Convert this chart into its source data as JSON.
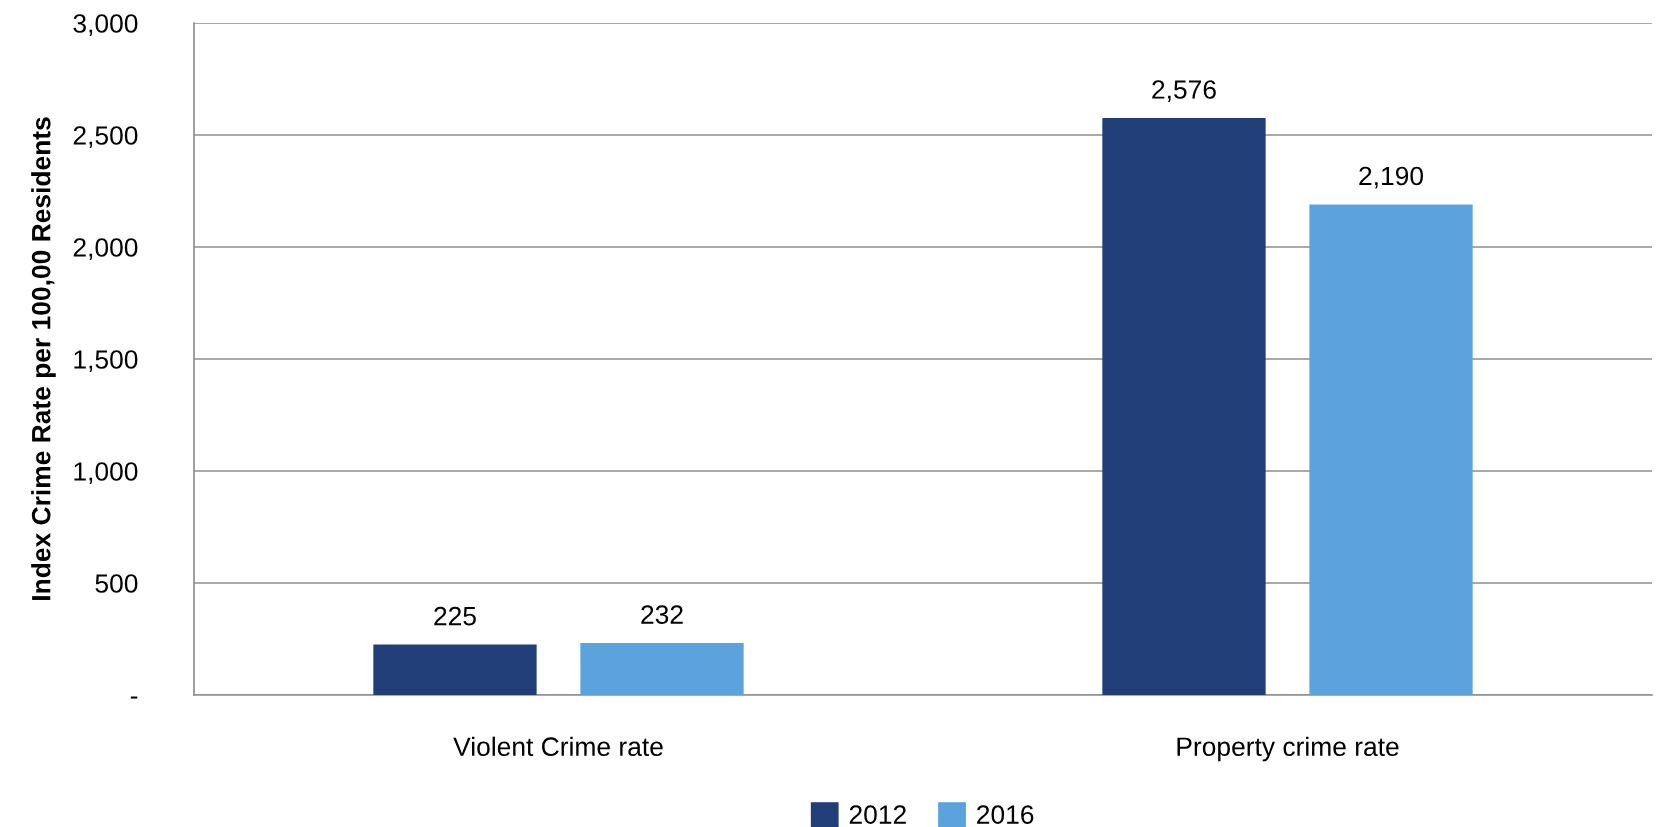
{
  "chart_data": {
    "type": "bar",
    "ylabel": "Index Crime Rate per 100,00 Residents",
    "categories": [
      "Violent Crime rate",
      "Property crime rate"
    ],
    "series": [
      {
        "name": "2012",
        "color": "#223e78",
        "values": [
          225,
          2576
        ],
        "value_labels": [
          "225",
          "2,576"
        ]
      },
      {
        "name": "2016",
        "color": "#5ba3dc",
        "values": [
          232,
          2190
        ],
        "value_labels": [
          "232",
          "2,190"
        ]
      }
    ],
    "ylim": [
      0,
      3000
    ],
    "yticks": [
      {
        "value": 0,
        "label": "-"
      },
      {
        "value": 500,
        "label": "500"
      },
      {
        "value": 1000,
        "label": "1,000"
      },
      {
        "value": 1500,
        "label": "1,500"
      },
      {
        "value": 2000,
        "label": "2,000"
      },
      {
        "value": 2500,
        "label": "2,500"
      },
      {
        "value": 3000,
        "label": "3,000"
      }
    ],
    "grid": "y",
    "legend": "bottom"
  }
}
